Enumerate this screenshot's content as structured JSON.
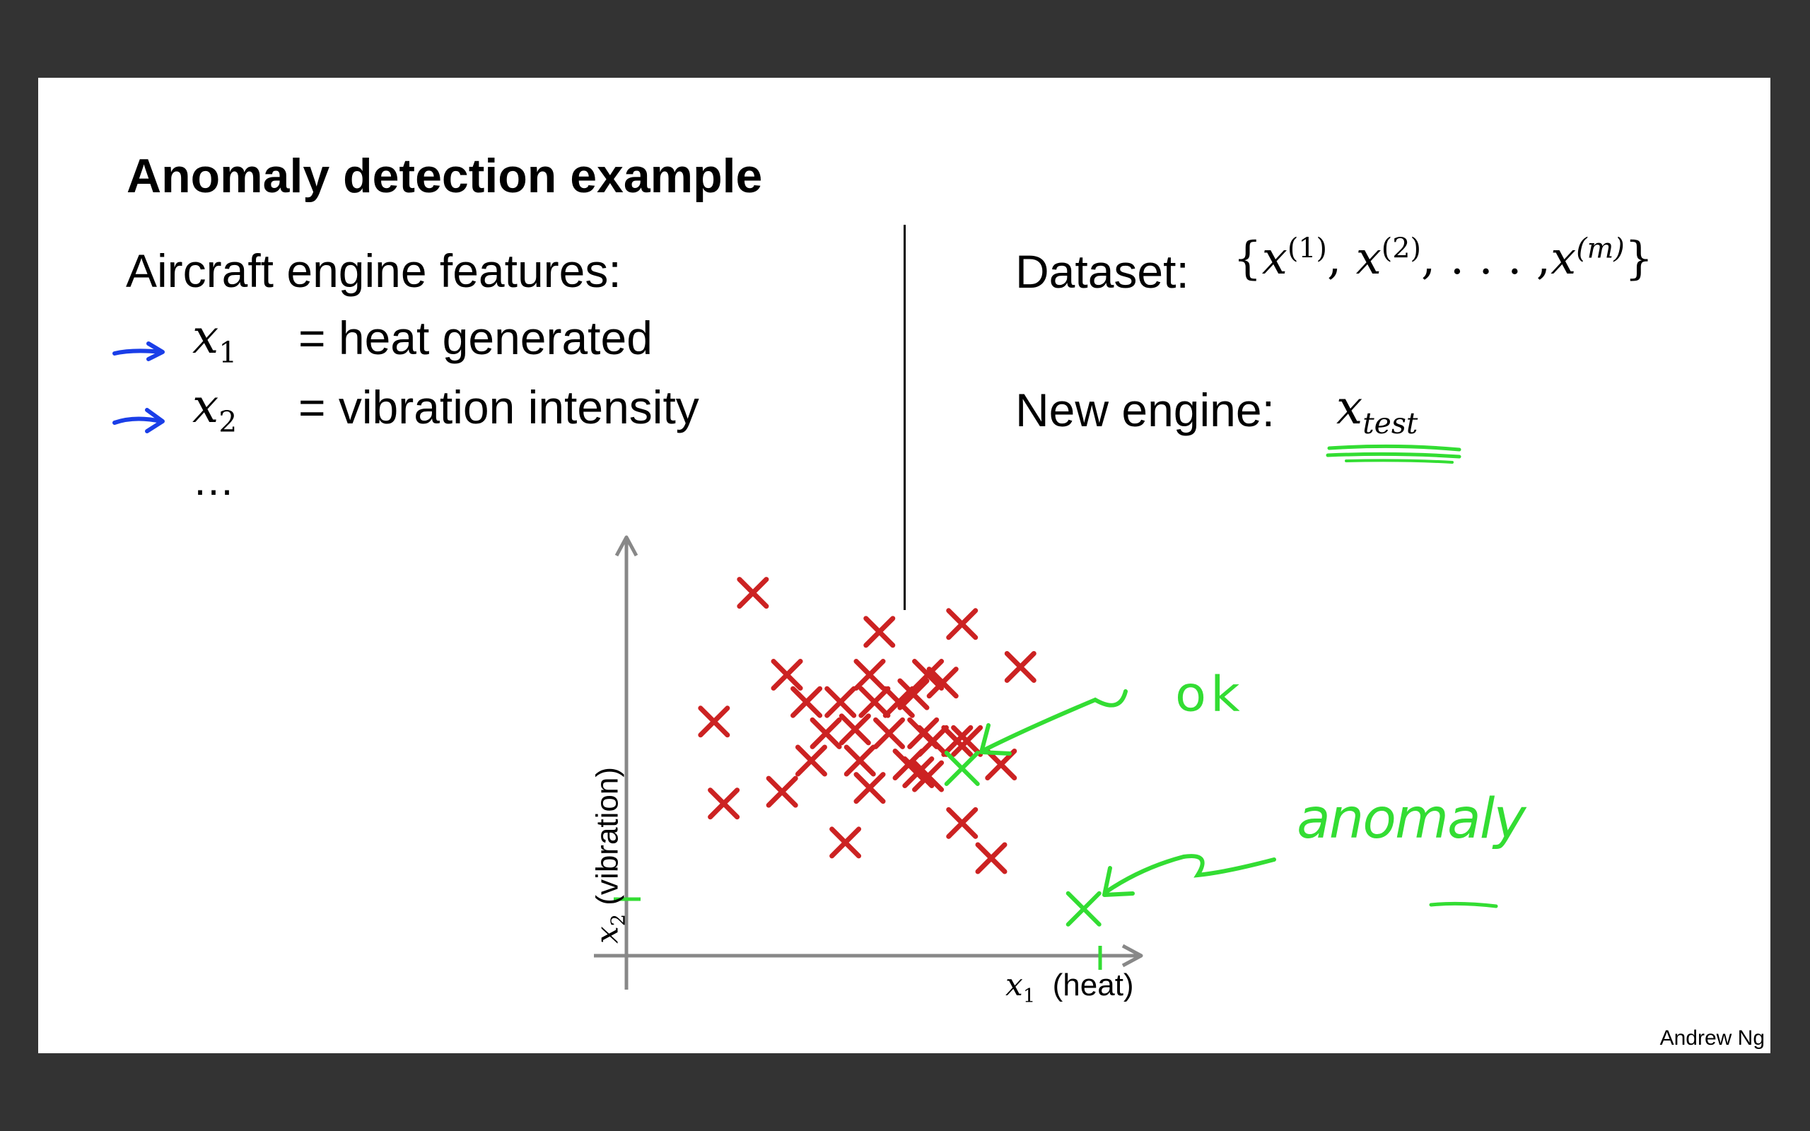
{
  "slide": {
    "title": "Anomaly detection example",
    "features_heading": "Aircraft engine features:",
    "features": [
      {
        "var": "x",
        "sub": "1",
        "desc": "= heat generated"
      },
      {
        "var": "x",
        "sub": "2",
        "desc": "= vibration intensity"
      }
    ],
    "ellipsis": "…",
    "dataset_label": "Dataset:",
    "dataset_set": {
      "open": "{",
      "x": "x",
      "sup1": "(1)",
      "sup2": "(2)",
      "dots": ", . . . ,",
      "supm": "(m)",
      "close": "}"
    },
    "new_engine_label": "New engine:",
    "xtest": {
      "var": "x",
      "sub": "test"
    },
    "author": "Andrew Ng"
  },
  "plot": {
    "xlabel": {
      "var": "x",
      "sub": "1",
      "text": "(heat)"
    },
    "ylabel": {
      "var": "x",
      "sub": "2",
      "text": "(vibration)"
    },
    "annotations": {
      "ok": "ok",
      "anomaly": "anomaly"
    },
    "colors": {
      "points": "#cc2222",
      "annotation": "#33dd33",
      "arrows": "#1a3ee8",
      "axes": "#888888"
    }
  },
  "chart_data": {
    "type": "scatter",
    "xlabel": "x1 (heat)",
    "ylabel": "x2 (vibration)",
    "xlim": [
      0,
      100
    ],
    "ylim": [
      0,
      100
    ],
    "series": [
      {
        "name": "",
        "x": [
          26,
          69,
          52,
          18,
          81,
          33,
          50,
          62,
          65,
          37,
          44,
          51,
          56,
          59,
          41,
          47,
          54,
          61,
          63,
          70,
          68,
          38,
          48,
          60,
          58,
          32,
          20,
          50,
          77,
          62,
          45,
          69,
          75
        ],
        "y": [
          93,
          85,
          83,
          60,
          74,
          72,
          72,
          72,
          70,
          65,
          65,
          65,
          65,
          67,
          57,
          58,
          57,
          57,
          55,
          55,
          55,
          50,
          50,
          47,
          49,
          42,
          39,
          43,
          49,
          46,
          29,
          34,
          25
        ]
      },
      {
        "name": "",
        "x": [
          69,
          94
        ],
        "y": [
          48,
          12
        ]
      }
    ]
  }
}
